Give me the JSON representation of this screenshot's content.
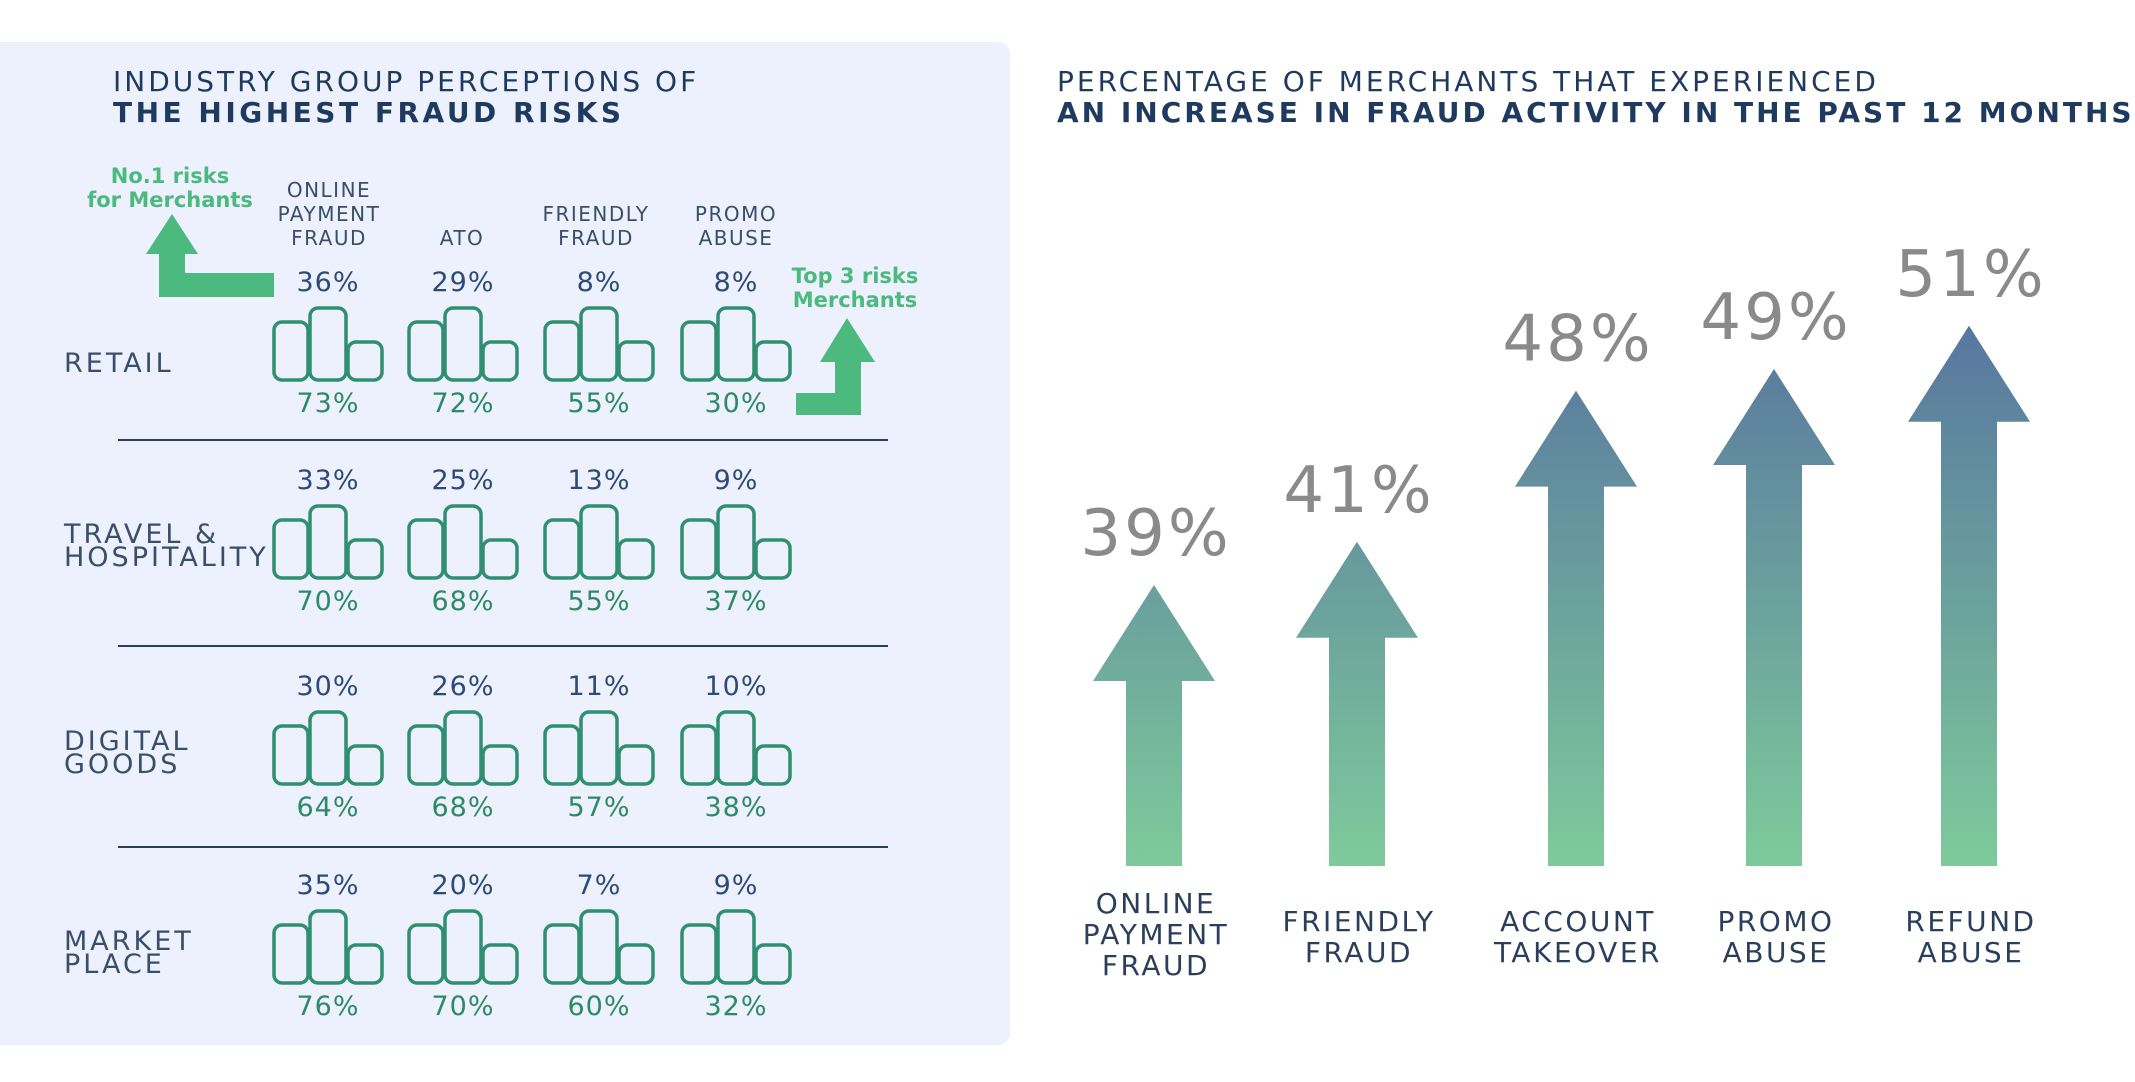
{
  "left": {
    "title_line1": "INDUSTRY GROUP PERCEPTIONS OF",
    "title_line2": "THE HIGHEST FRAUD RISKS",
    "legend_no1_line1": "No.1 risks",
    "legend_no1_line2": "for Merchants",
    "legend_top3_line1": "Top 3 risks",
    "legend_top3_line2": "Merchants",
    "columns": [
      {
        "line1": "ONLINE",
        "line2": "PAYMENT",
        "line3": "FRAUD"
      },
      {
        "line1": "",
        "line2": "",
        "line3": "ATO"
      },
      {
        "line1": "",
        "line2": "FRIENDLY",
        "line3": "FRAUD"
      },
      {
        "line1": "",
        "line2": "PROMO",
        "line3": "ABUSE"
      }
    ],
    "rows": [
      {
        "line1": "RETAIL",
        "line2": "",
        "no1": [
          "36%",
          "29%",
          "8%",
          "8%"
        ],
        "top3": [
          "73%",
          "72%",
          "55%",
          "30%"
        ]
      },
      {
        "line1": "TRAVEL &",
        "line2": "HOSPITALITY",
        "no1": [
          "33%",
          "25%",
          "13%",
          "9%"
        ],
        "top3": [
          "70%",
          "68%",
          "55%",
          "37%"
        ]
      },
      {
        "line1": "DIGITAL",
        "line2": "GOODS",
        "no1": [
          "30%",
          "26%",
          "11%",
          "10%"
        ],
        "top3": [
          "64%",
          "68%",
          "57%",
          "38%"
        ]
      },
      {
        "line1": "MARKET",
        "line2": "PLACE",
        "no1": [
          "35%",
          "20%",
          "7%",
          "9%"
        ],
        "top3": [
          "76%",
          "70%",
          "60%",
          "32%"
        ]
      }
    ],
    "colors": {
      "accent_green": "#4cb97f",
      "icon_stroke": "#2f8f70",
      "panel_bg": "#ecf1fd"
    },
    "icons": {
      "legend_no1": "arrow-up-left-icon",
      "legend_top3": "arrow-up-right-icon",
      "cell": "bar-chart-icon"
    }
  },
  "right": {
    "title_line1": "PERCENTAGE OF MERCHANTS THAT EXPERIENCED",
    "title_line2": "AN INCREASE IN FRAUD ACTIVITY IN THE PAST 12 MONTHS"
  },
  "chart_data": [
    {
      "type": "table",
      "title": "INDUSTRY GROUP PERCEPTIONS OF THE HIGHEST FRAUD RISKS",
      "columns": [
        "ONLINE PAYMENT FRAUD",
        "ATO",
        "FRIENDLY FRAUD",
        "PROMO ABUSE"
      ],
      "rows": [
        "RETAIL",
        "TRAVEL & HOSPITALITY",
        "DIGITAL GOODS",
        "MARKET PLACE"
      ],
      "series": [
        {
          "name": "No.1 risks for Merchants",
          "values": [
            [
              36,
              29,
              8,
              8
            ],
            [
              33,
              25,
              13,
              9
            ],
            [
              30,
              26,
              11,
              10
            ],
            [
              35,
              20,
              7,
              9
            ]
          ]
        },
        {
          "name": "Top 3 risks Merchants",
          "values": [
            [
              73,
              72,
              55,
              30
            ],
            [
              70,
              68,
              55,
              37
            ],
            [
              64,
              68,
              57,
              38
            ],
            [
              76,
              70,
              60,
              32
            ]
          ]
        }
      ]
    },
    {
      "type": "bar",
      "title": "PERCENTAGE OF MERCHANTS THAT EXPERIENCED AN INCREASE IN FRAUD ACTIVITY IN THE PAST 12 MONTHS",
      "categories": [
        "ONLINE PAYMENT FRAUD",
        "FRIENDLY FRAUD",
        "ACCOUNT TAKEOVER",
        "PROMO ABUSE",
        "REFUND ABUSE"
      ],
      "category_lines": [
        [
          "ONLINE",
          "PAYMENT",
          "FRAUD"
        ],
        [
          "FRIENDLY",
          "FRAUD"
        ],
        [
          "ACCOUNT",
          "TAKEOVER"
        ],
        [
          "PROMO",
          "ABUSE"
        ],
        [
          "REFUND",
          "ABUSE"
        ]
      ],
      "values": [
        39,
        41,
        48,
        49,
        51
      ],
      "labels": [
        "39%",
        "41%",
        "48%",
        "49%",
        "51%"
      ],
      "gradient": {
        "top": "#58779f",
        "bottom": "#7ecb9b"
      },
      "label_color": "#8a8a8a",
      "grid": false
    }
  ]
}
